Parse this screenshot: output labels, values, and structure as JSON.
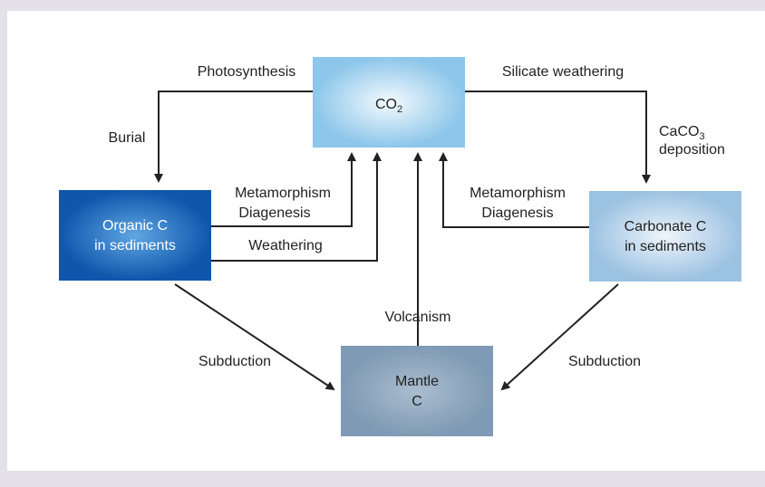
{
  "nodes": {
    "co2": {
      "text": "CO",
      "sub": "2"
    },
    "organic": {
      "lines": [
        "Organic C",
        "in sediments"
      ]
    },
    "carbonate": {
      "lines": [
        "Carbonate C",
        "in sediments"
      ]
    },
    "mantle": {
      "lines": [
        "Mantle",
        "C"
      ]
    }
  },
  "edges": {
    "photosynthesis": "Photosynthesis",
    "burial": "Burial",
    "silicate_weathering": "Silicate weathering",
    "deposition": {
      "text": "CaCO",
      "sub": "3",
      "line2": "deposition"
    },
    "organic_metamorphism": [
      "Metamorphism",
      "Diagenesis"
    ],
    "weathering": "Weathering",
    "carbonate_metamorphism": [
      "Metamorphism",
      "Diagenesis"
    ],
    "volcanism": "Volcanism",
    "subduction_left": "Subduction",
    "subduction_right": "Subduction"
  }
}
